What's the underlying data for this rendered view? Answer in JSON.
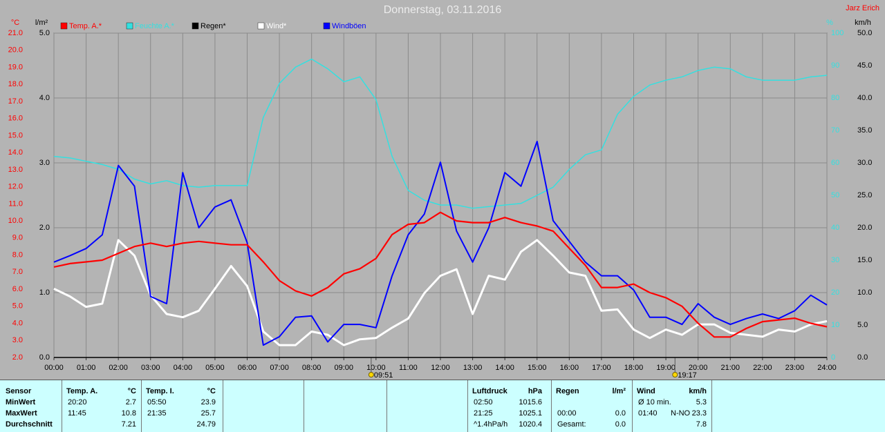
{
  "chart_data": {
    "type": "line",
    "title": "Donnerstag, 03.11.2016",
    "author": "Jarz Erich",
    "x": [
      0,
      0.5,
      1,
      1.5,
      2,
      2.5,
      3,
      3.5,
      4,
      4.5,
      5,
      5.5,
      6,
      6.5,
      7,
      7.5,
      8,
      8.5,
      9,
      9.5,
      10,
      10.5,
      11,
      11.5,
      12,
      12.5,
      13,
      13.5,
      14,
      14.5,
      15,
      15.5,
      16,
      16.5,
      17,
      17.5,
      18,
      18.5,
      19,
      19.5,
      20,
      20.5,
      21,
      21.5,
      22,
      22.5,
      23,
      23.5,
      24
    ],
    "xlim": [
      0,
      24
    ],
    "xticks": [
      {
        "value": 0,
        "label": "00:00"
      },
      {
        "value": 1,
        "label": "01:00"
      },
      {
        "value": 2,
        "label": "02:00"
      },
      {
        "value": 3,
        "label": "03:00"
      },
      {
        "value": 4,
        "label": "04:00"
      },
      {
        "value": 5,
        "label": "05:00"
      },
      {
        "value": 6,
        "label": "06:00"
      },
      {
        "value": 7,
        "label": "07:00"
      },
      {
        "value": 8,
        "label": "08:00"
      },
      {
        "value": 9,
        "label": "09:00"
      },
      {
        "value": 10,
        "label": "10:00"
      },
      {
        "value": 11,
        "label": "11:00"
      },
      {
        "value": 12,
        "label": "12:00"
      },
      {
        "value": 13,
        "label": "13:00"
      },
      {
        "value": 14,
        "label": "14:00"
      },
      {
        "value": 15,
        "label": "15:00"
      },
      {
        "value": 16,
        "label": "16:00"
      },
      {
        "value": 17,
        "label": "17:00"
      },
      {
        "value": 18,
        "label": "18:00"
      },
      {
        "value": 19,
        "label": "19:00"
      },
      {
        "value": 20,
        "label": "20:00"
      },
      {
        "value": 21,
        "label": "21:00"
      },
      {
        "value": 22,
        "label": "22:00"
      },
      {
        "value": 23,
        "label": "23:00"
      },
      {
        "value": 24,
        "label": "24:00"
      }
    ],
    "y_label": "°C",
    "y_color": "#ff0000",
    "ylim": [
      2,
      21
    ],
    "yticks": [
      {
        "value": 2,
        "label": "2.0"
      },
      {
        "value": 3,
        "label": "3.0"
      },
      {
        "value": 4,
        "label": "4.0"
      },
      {
        "value": 5,
        "label": "5.0"
      },
      {
        "value": 6,
        "label": "6.0"
      },
      {
        "value": 7,
        "label": "7.0"
      },
      {
        "value": 8,
        "label": "8.0"
      },
      {
        "value": 9,
        "label": "9.0"
      },
      {
        "value": 10,
        "label": "10.0"
      },
      {
        "value": 11,
        "label": "11.0"
      },
      {
        "value": 12,
        "label": "12.0"
      },
      {
        "value": 13,
        "label": "13.0"
      },
      {
        "value": 14,
        "label": "14.0"
      },
      {
        "value": 15,
        "label": "15.0"
      },
      {
        "value": 16,
        "label": "16.0"
      },
      {
        "value": 17,
        "label": "17.0"
      },
      {
        "value": 18,
        "label": "18.0"
      },
      {
        "value": 19,
        "label": "19.0"
      },
      {
        "value": 20,
        "label": "20.0"
      },
      {
        "value": 21,
        "label": "21.0"
      }
    ],
    "y2_label": "l/m²",
    "y2_color": "#000000",
    "y2lim": [
      0,
      5
    ],
    "y2ticks": [
      {
        "value": 0,
        "label": "0.0"
      },
      {
        "value": 1,
        "label": "1.0"
      },
      {
        "value": 2,
        "label": "2.0"
      },
      {
        "value": 3,
        "label": "3.0"
      },
      {
        "value": 4,
        "label": "4.0"
      },
      {
        "value": 5,
        "label": "5.0"
      }
    ],
    "y3_label": "%",
    "y3_color": "#33e0e0",
    "y3lim": [
      0,
      100
    ],
    "y3ticks": [
      0,
      10,
      20,
      30,
      40,
      50,
      60,
      70,
      80,
      90,
      100
    ],
    "y4_label": "km/h",
    "y4_color": "#000000",
    "y4lim": [
      0,
      50
    ],
    "y4ticks": [
      {
        "value": 0,
        "label": "0.0"
      },
      {
        "value": 5,
        "label": "5.0"
      },
      {
        "value": 10,
        "label": "10.0"
      },
      {
        "value": 15,
        "label": "15.0"
      },
      {
        "value": 20,
        "label": "20.0"
      },
      {
        "value": 25,
        "label": "25.0"
      },
      {
        "value": 30,
        "label": "30.0"
      },
      {
        "value": 35,
        "label": "35.0"
      },
      {
        "value": 40,
        "label": "40.0"
      },
      {
        "value": 45,
        "label": "45.0"
      },
      {
        "value": 50,
        "label": "50.0"
      }
    ],
    "grid": true,
    "series": [
      {
        "name": "Temp. A.*",
        "color": "#ff0000",
        "axis": "y",
        "values": [
          7.3,
          7.5,
          7.6,
          7.7,
          8.1,
          8.5,
          8.7,
          8.5,
          8.7,
          8.8,
          8.7,
          8.6,
          8.6,
          7.6,
          6.5,
          5.9,
          5.6,
          6.1,
          6.9,
          7.2,
          7.8,
          9.2,
          9.8,
          9.9,
          10.5,
          10.0,
          9.9,
          9.9,
          10.2,
          9.9,
          9.7,
          9.4,
          8.4,
          7.4,
          6.1,
          6.1,
          6.3,
          5.8,
          5.5,
          5.0,
          4.0,
          3.2,
          3.2,
          3.7,
          4.1,
          4.2,
          4.3,
          4.0,
          3.8
        ]
      },
      {
        "name": "Feuchte A.*",
        "color": "#33e0e0",
        "axis": "y3",
        "values": [
          62,
          61.5,
          60.5,
          59.5,
          58,
          55,
          53.5,
          54.5,
          53,
          52.5,
          53,
          53,
          53,
          74,
          84.5,
          89.5,
          92,
          89,
          85,
          86.5,
          79.5,
          62,
          51.5,
          48.5,
          47,
          47,
          46,
          46.5,
          47,
          47.5,
          50,
          52.5,
          58,
          62.5,
          64,
          75,
          80.5,
          84,
          85.5,
          86.5,
          88.5,
          89.5,
          89,
          86.5,
          85.5,
          85.5,
          85.5,
          86.5,
          87
        ]
      },
      {
        "name": "Regen*",
        "color": "#000000",
        "axis": "y2",
        "values": [
          0,
          0,
          0,
          0,
          0,
          0,
          0,
          0,
          0,
          0,
          0,
          0,
          0,
          0,
          0,
          0,
          0,
          0,
          0,
          0,
          0,
          0,
          0,
          0,
          0,
          0,
          0,
          0,
          0,
          0,
          0,
          0,
          0,
          0,
          0,
          0,
          0,
          0,
          0,
          0,
          0,
          0,
          0,
          0,
          0,
          0,
          0,
          0,
          0
        ]
      },
      {
        "name": "Wind*",
        "color": "#ffffff",
        "axis": "y4",
        "values": [
          10.6,
          9.4,
          7.8,
          8.3,
          18.1,
          15.7,
          9.6,
          6.7,
          6.2,
          7.2,
          10.6,
          14.1,
          11.0,
          4.0,
          1.9,
          1.9,
          4.0,
          3.5,
          1.9,
          2.8,
          3.0,
          4.6,
          6.0,
          9.9,
          12.6,
          13.6,
          6.7,
          12.6,
          12.0,
          16.3,
          18.1,
          15.7,
          13.1,
          12.6,
          7.2,
          7.4,
          4.3,
          3.0,
          4.3,
          3.5,
          5.1,
          5.1,
          3.8,
          3.5,
          3.2,
          4.3,
          4.0,
          5.1,
          5.6
        ]
      },
      {
        "name": "Windböen",
        "color": "#0000ff",
        "axis": "y4",
        "values": [
          14.7,
          15.7,
          16.8,
          18.9,
          29.6,
          26.4,
          9.4,
          8.3,
          28.5,
          20.0,
          23.2,
          24.3,
          17.7,
          1.9,
          3.2,
          6.2,
          6.4,
          2.4,
          5.1,
          5.1,
          4.6,
          12.6,
          18.9,
          22.1,
          30.1,
          19.5,
          14.7,
          20.0,
          28.5,
          26.4,
          33.3,
          21.1,
          17.9,
          14.7,
          12.6,
          12.6,
          10.4,
          6.2,
          6.2,
          5.1,
          8.3,
          6.2,
          5.1,
          6.0,
          6.7,
          6.0,
          7.2,
          9.6,
          8.1
        ]
      }
    ],
    "markers": [
      {
        "label": "09:51",
        "x": 9.85
      },
      {
        "label": "19:17",
        "x": 19.283
      }
    ]
  },
  "stats": {
    "sensor_header": "Sensor",
    "row_labels": [
      "MinWert",
      "MaxWert",
      "Durchschnitt"
    ],
    "groups": [
      {
        "name": "Temp. A.",
        "unit": "°C",
        "times": [
          "20:20",
          "11:45",
          null
        ],
        "values": [
          "2.7",
          "10.8",
          "7.21"
        ]
      },
      {
        "name": "Temp. I.",
        "unit": "°C",
        "times": [
          "05:50",
          "21:35",
          null
        ],
        "values": [
          "23.9",
          "25.7",
          "24.79"
        ]
      },
      {
        "name": "Luftdruck",
        "unit": "hPa",
        "times": [
          "02:50",
          "21:25",
          "^1.4hPa/h"
        ],
        "values": [
          "1015.6",
          "1025.1",
          "1020.4"
        ]
      },
      {
        "name": "Regen",
        "unit": "l/m²",
        "times": [
          null,
          "00:00",
          "Gesamt:"
        ],
        "values": [
          null,
          "0.0",
          "0.0"
        ]
      },
      {
        "name": "Wind",
        "unit": "km/h",
        "times": [
          "Ø 10 min.",
          "01:40",
          null
        ],
        "directions": [
          null,
          "N-NO",
          null
        ],
        "values": [
          "5.3",
          "23.3",
          "7.8"
        ]
      }
    ]
  }
}
